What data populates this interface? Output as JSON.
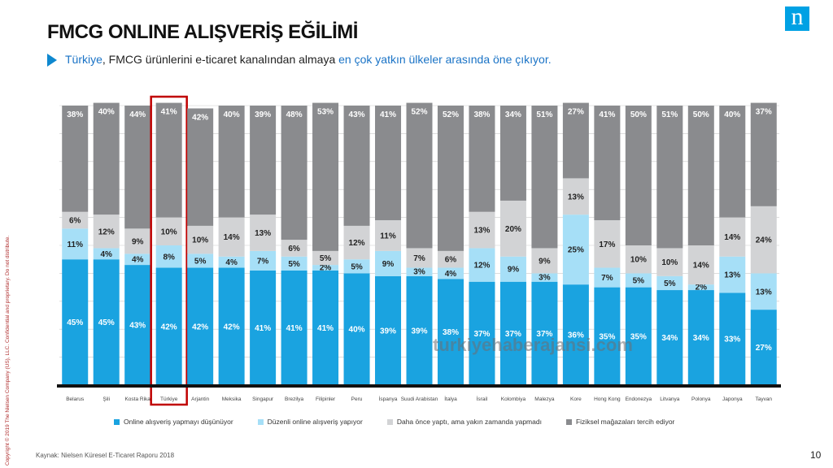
{
  "header": {
    "title": "FMCG ONLINE ALIŞVERİŞ EĞİLİMİ",
    "subtitle_part1": "Türkiye",
    "subtitle_part2": ", FMCG ürünlerini e-ticaret kanalından almaya ",
    "subtitle_part3": "en çok yatkın ülkeler arasında öne çıkıyor.",
    "logo_text": "n"
  },
  "footer": {
    "source": "Kaynak: Nielsen Küresel E-Ticaret Raporu 2018",
    "page_number": "10",
    "side_copyright": "Copyright © 2019 The Nielsen Company (US), LLC. Confidential and proprietary. Do not distribute.",
    "watermark": "turkiyehaberajansi.com"
  },
  "colors": {
    "online_think": "#1aa3e0",
    "online_regular": "#a6dff7",
    "tried_before": "#d2d3d5",
    "physical": "#8a8b8e",
    "highlight_box": "#c00000",
    "bar_bg": "#8a8b8e"
  },
  "chart_data": {
    "type": "bar",
    "stacked": true,
    "ylim": [
      0,
      100
    ],
    "highlight_category": "Türkiye",
    "categories": [
      "Belarus",
      "Şili",
      "Kosta Rika",
      "Türkiye",
      "Arjantin",
      "Meksika",
      "Singapur",
      "Brezilya",
      "Filipinler",
      "Peru",
      "İspanya",
      "Suudi Arabistan",
      "İtalya",
      "İsrail",
      "Kolombiya",
      "Malezya",
      "Kore",
      "Hong Kong",
      "Endonezya",
      "Litvanya",
      "Polonya",
      "Japonya",
      "Tayvan"
    ],
    "series": [
      {
        "name": "Online alışveriş yapmayı düşünüyor",
        "values": [
          45,
          45,
          43,
          42,
          42,
          42,
          41,
          41,
          41,
          40,
          39,
          39,
          38,
          37,
          37,
          37,
          36,
          35,
          35,
          34,
          34,
          33,
          27
        ]
      },
      {
        "name": "Düzenli online alışveriş yapıyor",
        "values": [
          11,
          4,
          4,
          8,
          5,
          4,
          7,
          5,
          2,
          5,
          9,
          3,
          4,
          12,
          9,
          3,
          25,
          7,
          5,
          5,
          2,
          13,
          13
        ]
      },
      {
        "name": "Daha önce yaptı, ama yakın zamanda yapmadı",
        "values": [
          6,
          12,
          9,
          10,
          10,
          14,
          13,
          6,
          5,
          12,
          11,
          7,
          6,
          13,
          20,
          9,
          13,
          17,
          10,
          10,
          14,
          14,
          24
        ]
      },
      {
        "name": "Fiziksel mağazaları tercih ediyor",
        "values": [
          38,
          40,
          44,
          41,
          42,
          40,
          39,
          48,
          53,
          43,
          41,
          52,
          52,
          38,
          34,
          51,
          27,
          41,
          50,
          51,
          50,
          40,
          37
        ]
      }
    ]
  }
}
